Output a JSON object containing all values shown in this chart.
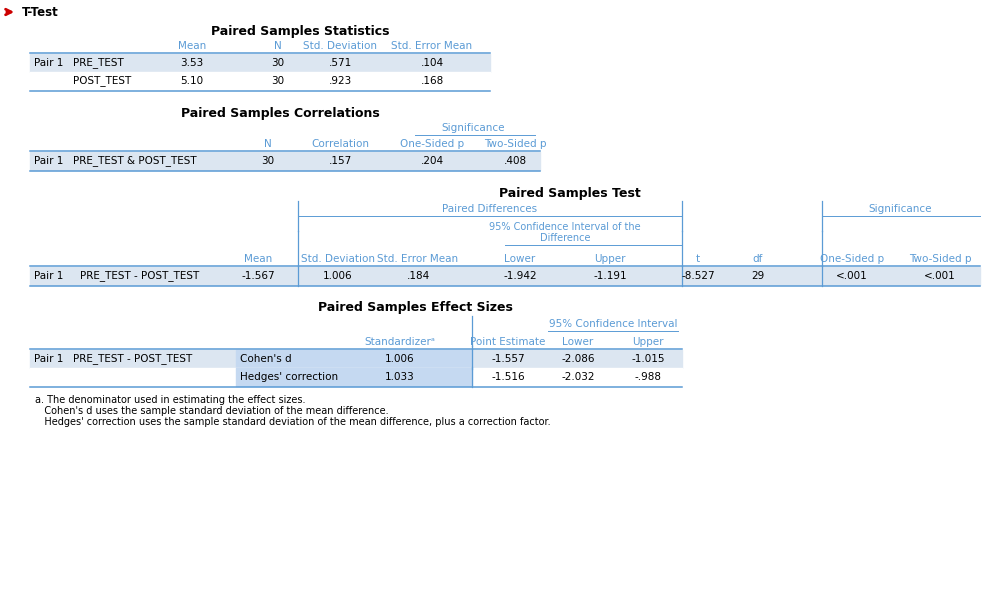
{
  "title": "T-Test",
  "bg_color": "#ffffff",
  "border_color": "#5b9bd5",
  "header_text_color": "#5b9bd5",
  "text_color": "#000000",
  "row_alt_color": "#dce6f1",
  "row_color": "#ffffff",
  "cell_highlight": "#c5d9f1",
  "table1_title": "Paired Samples Statistics",
  "table1_rows": [
    [
      "Pair 1",
      "PRE_TEST",
      "3.53",
      "30",
      ".571",
      ".104"
    ],
    [
      "",
      "POST_TEST",
      "5.10",
      "30",
      ".923",
      ".168"
    ]
  ],
  "table2_title": "Paired Samples Correlations",
  "table2_rows": [
    [
      "Pair 1",
      "PRE_TEST & POST_TEST",
      "30",
      ".157",
      ".204",
      ".408"
    ]
  ],
  "table3_title": "Paired Samples Test",
  "table3_rows": [
    [
      "Pair 1",
      "PRE_TEST - POST_TEST",
      "-1.567",
      "1.006",
      ".184",
      "-1.942",
      "-1.191",
      "-8.527",
      "29",
      "<.001",
      "<.001"
    ]
  ],
  "table4_title": "Paired Samples Effect Sizes",
  "table4_rows": [
    [
      "Pair 1",
      "PRE_TEST - POST_TEST",
      "Cohen's d",
      "1.006",
      "-1.557",
      "-2.086",
      "-1.015"
    ],
    [
      "",
      "",
      "Hedges' correction",
      "1.033",
      "-1.516",
      "-2.032",
      "-.988"
    ]
  ],
  "table4_footnotes": [
    "a. The denominator used in estimating the effect sizes.",
    "   Cohen's d uses the sample standard deviation of the mean difference.",
    "   Hedges' correction uses the sample standard deviation of the mean difference, plus a correction factor."
  ]
}
